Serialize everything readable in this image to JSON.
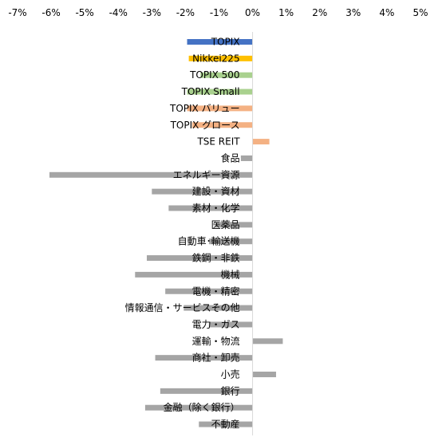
{
  "chart_data": {
    "type": "bar",
    "orientation": "horizontal",
    "x_ticks": [
      "-7%",
      "-6%",
      "-5%",
      "-4%",
      "-3%",
      "-2%",
      "-1%",
      "0%",
      "1%",
      "2%",
      "3%",
      "4%",
      "5%"
    ],
    "xlim": [
      -7,
      5
    ],
    "grid": false,
    "legend": "none",
    "categories": [
      "TOPIX",
      "Nikkei225",
      "TOPIX 500",
      "TOPIX Small",
      "TOPIX バリュー",
      "TOPIX グロース",
      "TSE REIT",
      "食品",
      "エネルギー資源",
      "建設・資材",
      "素材・化学",
      "医薬品",
      "自動車･輸送機",
      "鉄鋼・非鉄",
      "機械",
      "電機・精密",
      "情報通信・サービスその他",
      "電力・ガス",
      "運輸・物流",
      "商社・卸売",
      "小売",
      "銀行",
      "金融（除く銀行）",
      "不動産"
    ],
    "values": [
      -1.95,
      -1.9,
      -1.55,
      -1.95,
      -1.95,
      -1.8,
      0.5,
      -0.35,
      -6.05,
      -3.0,
      -2.5,
      -1.1,
      -1.3,
      -3.15,
      -3.5,
      -2.6,
      -2.05,
      -1.3,
      0.9,
      -2.9,
      0.7,
      -2.75,
      -3.2,
      -1.6
    ],
    "colors": [
      "#4472c4",
      "#ffc000",
      "#a9d18e",
      "#a9d18e",
      "#f4b183",
      "#f4b183",
      "#f4b183",
      "#a5a5a5",
      "#a5a5a5",
      "#a5a5a5",
      "#a5a5a5",
      "#a5a5a5",
      "#a5a5a5",
      "#a5a5a5",
      "#a5a5a5",
      "#a5a5a5",
      "#a5a5a5",
      "#a5a5a5",
      "#a5a5a5",
      "#a5a5a5",
      "#a5a5a5",
      "#a5a5a5",
      "#a5a5a5",
      "#a5a5a5"
    ],
    "axis_color": "#d9d9d9"
  }
}
